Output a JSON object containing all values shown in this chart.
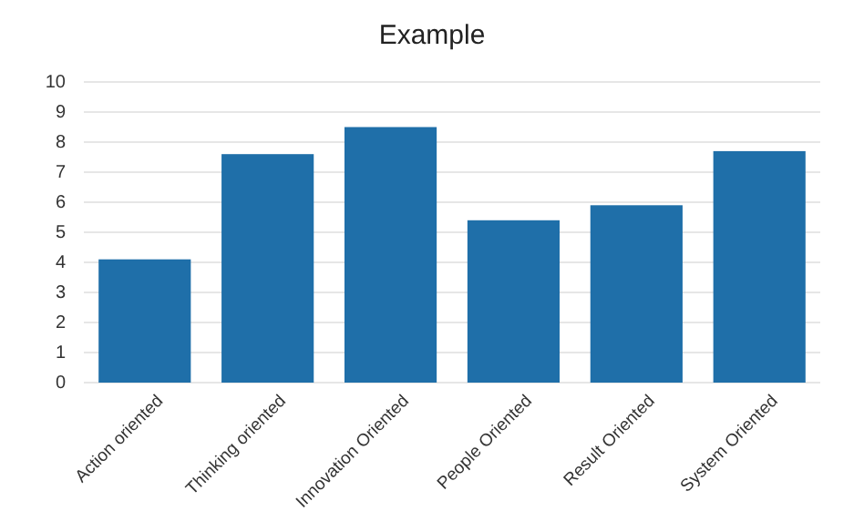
{
  "chart_data": {
    "type": "bar",
    "title": "Example",
    "categories": [
      "Action oriented",
      "Thinking oriented",
      "Innovation Oriented",
      "People Oriented",
      "Result Oriented",
      "System Oriented"
    ],
    "values": [
      4.1,
      7.6,
      8.5,
      5.4,
      5.9,
      7.7
    ],
    "color": "#1f6fa9",
    "ylim": [
      0,
      10
    ],
    "yticks": [
      0,
      1,
      2,
      3,
      4,
      5,
      6,
      7,
      8,
      9,
      10
    ],
    "grid": "y"
  }
}
